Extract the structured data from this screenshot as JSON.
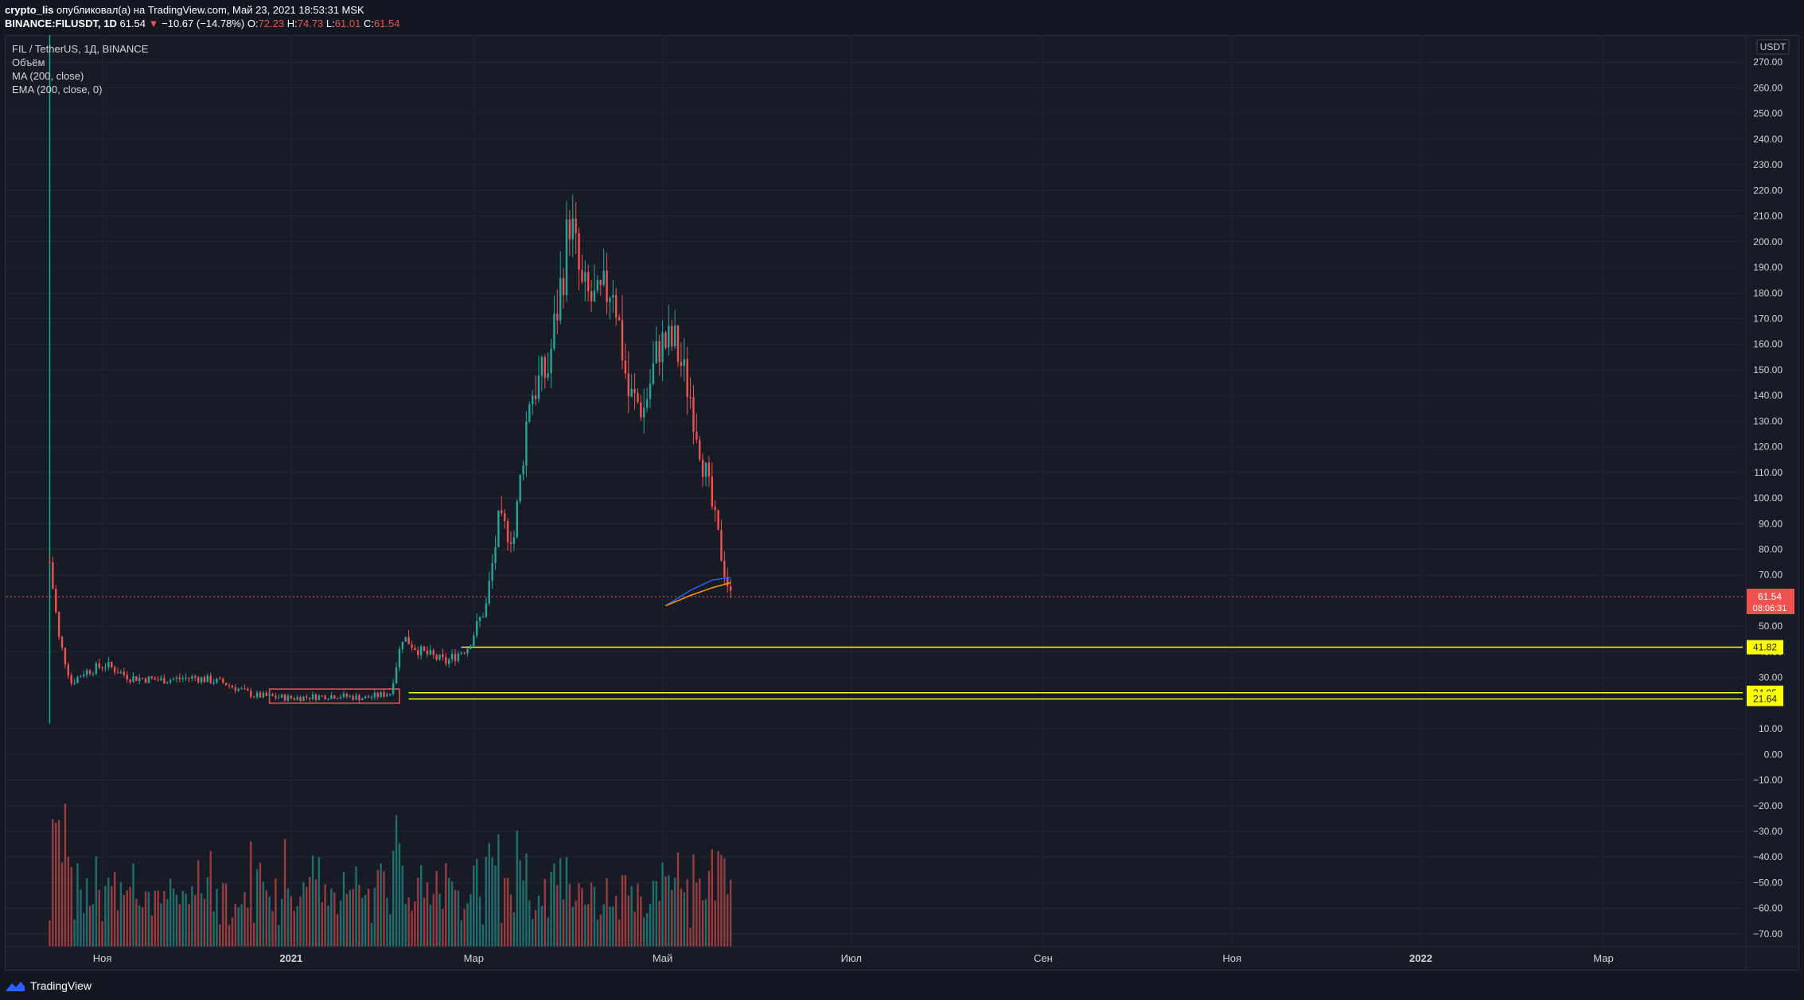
{
  "header": {
    "author": "crypto_lis",
    "published_text": "опубликовал(а) на TradingView.com, Май 23, 2021 18:53:31 MSK",
    "symbol": "BINANCE:FILUSDT, 1D",
    "last": "61.54",
    "change": "−10.67 (−14.78%)",
    "o_label": "O:",
    "o_val": "72.23",
    "h_label": "H:",
    "h_val": "74.73",
    "l_label": "L:",
    "l_val": "61.01",
    "c_label": "C:",
    "c_val": "61.54"
  },
  "legend": {
    "title": "FIL / TetherUS, 1Д, BINANCE",
    "volume": "Объём",
    "ma": "MA (200, close)",
    "ema": "EMA (200, close, 0)"
  },
  "footer": {
    "brand": "TradingView"
  },
  "colors": {
    "up": "#26a69a",
    "down": "#ef5350",
    "level": "#ffff00",
    "price_tag": "#ef5350",
    "ma": "#2962ff",
    "ema": "#ff9800",
    "grid": "#232734"
  },
  "chart_data": {
    "type": "candlestick",
    "currency": "USDT",
    "y_ticks": [
      "270.00",
      "260.00",
      "250.00",
      "240.00",
      "230.00",
      "220.00",
      "210.00",
      "200.00",
      "190.00",
      "180.00",
      "170.00",
      "160.00",
      "150.00",
      "140.00",
      "130.00",
      "120.00",
      "110.00",
      "100.00",
      "90.00",
      "80.00",
      "70.00",
      "50.00",
      "40.00",
      "30.00",
      "10.00",
      "0.00",
      "−10.00",
      "−20.00",
      "−30.00",
      "−40.00",
      "−50.00",
      "−60.00",
      "−70.00"
    ],
    "x_ticks": [
      {
        "label": "Ноя",
        "date": "2020-11-01"
      },
      {
        "label": "2021",
        "date": "2021-01-01"
      },
      {
        "label": "Мар",
        "date": "2021-03-01"
      },
      {
        "label": "Май",
        "date": "2021-05-01"
      },
      {
        "label": "Июл",
        "date": "2021-07-01"
      },
      {
        "label": "Сен",
        "date": "2021-09-01"
      },
      {
        "label": "Ноя",
        "date": "2021-11-01"
      },
      {
        "label": "2022",
        "date": "2022-01-01"
      },
      {
        "label": "Мар",
        "date": "2022-03-01"
      }
    ],
    "ylim": [
      -75,
      280
    ],
    "xlim": [
      "2020-10-01",
      "2022-04-15"
    ],
    "last_price": "61.54",
    "countdown": "08:06:31",
    "levels": [
      "41.82",
      "24.05",
      "21.64"
    ],
    "series": [
      {
        "name": "FIL / TetherUS",
        "close": [
          {
            "x": "2020-10-15",
            "y": 75
          },
          {
            "x": "2020-10-18",
            "y": 45
          },
          {
            "x": "2020-10-22",
            "y": 28
          },
          {
            "x": "2020-10-26",
            "y": 32
          },
          {
            "x": "2020-11-02",
            "y": 35
          },
          {
            "x": "2020-11-10",
            "y": 30
          },
          {
            "x": "2020-11-20",
            "y": 29
          },
          {
            "x": "2020-12-01",
            "y": 30
          },
          {
            "x": "2020-12-10",
            "y": 28
          },
          {
            "x": "2020-12-20",
            "y": 23
          },
          {
            "x": "2021-01-01",
            "y": 22
          },
          {
            "x": "2021-01-15",
            "y": 23
          },
          {
            "x": "2021-01-25",
            "y": 22
          },
          {
            "x": "2021-02-02",
            "y": 24
          },
          {
            "x": "2021-02-06",
            "y": 46
          },
          {
            "x": "2021-02-12",
            "y": 40
          },
          {
            "x": "2021-02-20",
            "y": 36
          },
          {
            "x": "2021-02-27",
            "y": 42
          },
          {
            "x": "2021-03-05",
            "y": 58
          },
          {
            "x": "2021-03-09",
            "y": 90
          },
          {
            "x": "2021-03-14",
            "y": 85
          },
          {
            "x": "2021-03-19",
            "y": 140
          },
          {
            "x": "2021-03-25",
            "y": 150
          },
          {
            "x": "2021-03-30",
            "y": 190
          },
          {
            "x": "2021-04-01",
            "y": 210
          },
          {
            "x": "2021-04-05",
            "y": 180
          },
          {
            "x": "2021-04-10",
            "y": 175
          },
          {
            "x": "2021-04-15",
            "y": 185
          },
          {
            "x": "2021-04-20",
            "y": 140
          },
          {
            "x": "2021-04-25",
            "y": 135
          },
          {
            "x": "2021-04-30",
            "y": 160
          },
          {
            "x": "2021-05-05",
            "y": 160
          },
          {
            "x": "2021-05-10",
            "y": 140
          },
          {
            "x": "2021-05-14",
            "y": 115
          },
          {
            "x": "2021-05-18",
            "y": 90
          },
          {
            "x": "2021-05-21",
            "y": 72
          },
          {
            "x": "2021-05-23",
            "y": 61.54
          }
        ]
      },
      {
        "name": "MA (200, close)",
        "values": [
          {
            "x": "2021-05-02",
            "y": 58
          },
          {
            "x": "2021-05-10",
            "y": 64
          },
          {
            "x": "2021-05-17",
            "y": 68
          },
          {
            "x": "2021-05-23",
            "y": 69
          }
        ]
      },
      {
        "name": "EMA (200, close, 0)",
        "values": [
          {
            "x": "2021-05-02",
            "y": 58
          },
          {
            "x": "2021-05-10",
            "y": 62
          },
          {
            "x": "2021-05-17",
            "y": 65
          },
          {
            "x": "2021-05-23",
            "y": 67
          }
        ]
      }
    ]
  }
}
